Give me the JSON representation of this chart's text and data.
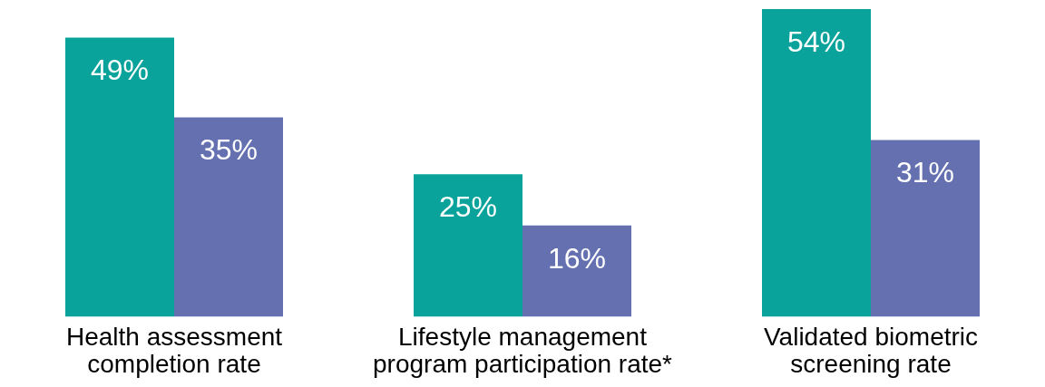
{
  "chart_data": {
    "type": "bar",
    "categories": [
      "Health assessment completion rate",
      "Lifestyle management program participation rate*",
      "Validated biometric screening rate"
    ],
    "series": [
      {
        "color": "#0aa39c",
        "values": [
          49,
          25,
          54
        ],
        "value_labels": [
          "49%",
          "25%",
          "54%"
        ]
      },
      {
        "color": "#6570b0",
        "values": [
          35,
          16,
          31
        ],
        "value_labels": [
          "35%",
          "16%",
          "31%"
        ]
      }
    ],
    "grid": false,
    "legend": false
  }
}
